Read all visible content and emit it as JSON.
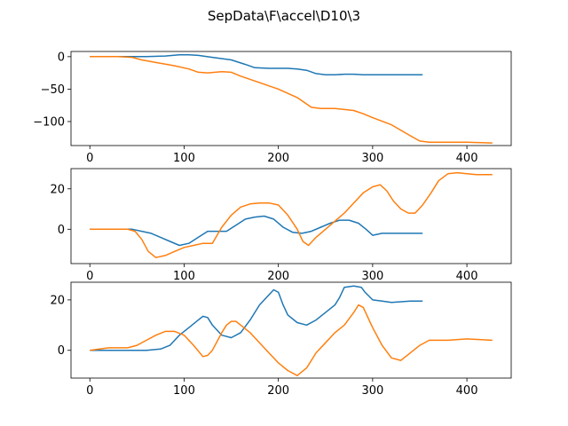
{
  "title": "SepData\\F\\accel\\D10\\3",
  "colors": {
    "series1": "#1f77b4",
    "series2": "#ff7f0e"
  },
  "chart_data": [
    {
      "type": "line",
      "xlim": [
        -20,
        447
      ],
      "ylim": [
        -137,
        8
      ],
      "xticks": [
        0,
        100,
        200,
        300,
        400
      ],
      "yticks": [
        0,
        -50,
        -100
      ],
      "ytick_labels": [
        "0",
        "−50",
        "−100"
      ],
      "series": [
        {
          "color": "series1",
          "x": [
            0,
            20,
            45,
            60,
            80,
            95,
            105,
            115,
            130,
            150,
            165,
            175,
            190,
            200,
            210,
            220,
            230,
            240,
            250,
            260,
            270,
            280,
            290,
            300,
            320,
            340,
            353
          ],
          "y": [
            0,
            0,
            0,
            0,
            1,
            3,
            3,
            2,
            -1,
            -5,
            -12,
            -17,
            -18,
            -18,
            -18,
            -19,
            -21,
            -26,
            -28,
            -28,
            -27,
            -27,
            -28,
            -28,
            -28,
            -28,
            -28
          ]
        },
        {
          "color": "series2",
          "x": [
            0,
            30,
            45,
            55,
            70,
            90,
            105,
            115,
            125,
            140,
            150,
            160,
            180,
            200,
            220,
            235,
            245,
            260,
            280,
            290,
            300,
            320,
            340,
            350,
            360,
            380,
            400,
            427
          ],
          "y": [
            0,
            0,
            -1,
            -5,
            -9,
            -14,
            -19,
            -24,
            -25,
            -23,
            -24,
            -30,
            -40,
            -50,
            -63,
            -78,
            -80,
            -80,
            -83,
            -88,
            -94,
            -105,
            -122,
            -130,
            -132,
            -132,
            -132,
            -133
          ]
        }
      ]
    },
    {
      "type": "line",
      "xlim": [
        -20,
        447
      ],
      "ylim": [
        -17,
        30
      ],
      "xticks": [
        0,
        100,
        200,
        300,
        400
      ],
      "yticks": [
        20,
        0
      ],
      "ytick_labels": [
        "20",
        "0"
      ],
      "series": [
        {
          "color": "series1",
          "x": [
            0,
            20,
            45,
            55,
            65,
            75,
            85,
            95,
            105,
            115,
            125,
            135,
            145,
            155,
            165,
            175,
            185,
            195,
            205,
            215,
            225,
            235,
            245,
            255,
            265,
            275,
            285,
            293,
            300,
            310,
            320,
            340,
            353
          ],
          "y": [
            0,
            0,
            0,
            -1,
            -2,
            -4,
            -6,
            -8,
            -7,
            -4,
            -1,
            -1,
            -1,
            2,
            5,
            6,
            6.5,
            5,
            1,
            -1.5,
            -2,
            -1,
            1,
            3,
            4.5,
            4.5,
            3,
            0,
            -3,
            -2,
            -2,
            -2,
            -2
          ]
        },
        {
          "color": "series2",
          "x": [
            0,
            20,
            40,
            48,
            55,
            62,
            70,
            80,
            90,
            100,
            110,
            120,
            130,
            140,
            150,
            160,
            170,
            180,
            190,
            200,
            210,
            220,
            226,
            232,
            240,
            250,
            260,
            270,
            280,
            290,
            300,
            308,
            315,
            322,
            330,
            338,
            345,
            353,
            362,
            370,
            380,
            390,
            400,
            410,
            427
          ],
          "y": [
            0,
            0,
            0,
            -1,
            -5,
            -11,
            -14,
            -13,
            -11,
            -9,
            -8,
            -7,
            -7,
            1,
            7,
            11,
            12.5,
            13,
            13,
            12,
            7,
            0,
            -6,
            -8,
            -4,
            0,
            4,
            8,
            13,
            18,
            21,
            22,
            19,
            14,
            10,
            8,
            8,
            12,
            18,
            24,
            27.5,
            28,
            27.5,
            27,
            27
          ]
        }
      ]
    },
    {
      "type": "line",
      "xlim": [
        -20,
        447
      ],
      "ylim": [
        -11,
        27
      ],
      "xticks": [
        0,
        100,
        200,
        300,
        400
      ],
      "yticks": [
        20,
        0
      ],
      "ytick_labels": [
        "20",
        "0"
      ],
      "series": [
        {
          "color": "series1",
          "x": [
            0,
            20,
            40,
            60,
            75,
            85,
            95,
            105,
            115,
            120,
            125,
            130,
            140,
            150,
            160,
            170,
            180,
            190,
            195,
            200,
            205,
            210,
            220,
            230,
            240,
            250,
            260,
            265,
            270,
            280,
            288,
            292,
            300,
            310,
            320,
            340,
            353
          ],
          "y": [
            0,
            0,
            0,
            0,
            0.5,
            2,
            6,
            9,
            12,
            13.5,
            13,
            10,
            6,
            5,
            7,
            12,
            18,
            22,
            24,
            23,
            18,
            14,
            11,
            10,
            12,
            15,
            18,
            21,
            25,
            25.5,
            25,
            23,
            20,
            19.5,
            19,
            19.5,
            19.5
          ]
        },
        {
          "color": "series2",
          "x": [
            0,
            20,
            40,
            50,
            60,
            70,
            80,
            90,
            100,
            110,
            120,
            125,
            130,
            140,
            145,
            150,
            155,
            160,
            170,
            180,
            190,
            200,
            210,
            220,
            230,
            240,
            250,
            260,
            270,
            280,
            285,
            290,
            300,
            310,
            320,
            330,
            340,
            350,
            360,
            380,
            400,
            427
          ],
          "y": [
            0,
            1,
            1,
            2,
            4,
            6,
            7.5,
            7.5,
            6,
            2,
            -2.5,
            -2,
            0,
            7,
            10,
            11.5,
            11.5,
            10,
            7,
            3,
            -1,
            -5,
            -8,
            -10,
            -7,
            -1,
            3,
            7,
            10,
            15,
            18,
            17,
            9,
            2,
            -3,
            -4,
            -1,
            2,
            4,
            4,
            4.5,
            4
          ]
        }
      ]
    }
  ]
}
